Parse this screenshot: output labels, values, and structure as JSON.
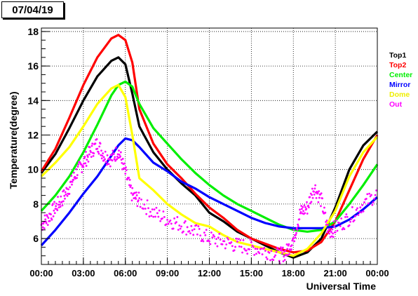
{
  "date_label": "07/04/19",
  "chart_data": {
    "type": "line",
    "title": "",
    "xlabel": "Universal Time",
    "ylabel": "Temperature(degree)",
    "xlim": [
      0,
      24
    ],
    "ylim": [
      4.5,
      18.2
    ],
    "x_ticks": [
      "00:00",
      "03:00",
      "06:00",
      "09:00",
      "12:00",
      "15:00",
      "18:00",
      "21:00",
      "00:00"
    ],
    "y_ticks": [
      6,
      8,
      10,
      12,
      14,
      16,
      18
    ],
    "grid": true,
    "legend_position": "right",
    "series": [
      {
        "name": "Top1",
        "color": "#000000",
        "x": [
          0,
          1,
          2,
          3,
          4,
          5,
          5.5,
          6,
          6.5,
          7,
          8,
          9,
          10,
          11,
          12,
          13,
          14,
          15,
          16,
          17,
          18,
          19,
          20,
          21,
          22,
          23,
          24
        ],
        "y": [
          9.8,
          10.9,
          12.4,
          14.0,
          15.4,
          16.3,
          16.5,
          16.1,
          14.4,
          12.5,
          11.0,
          10.0,
          9.2,
          8.5,
          7.5,
          7.0,
          6.4,
          6.0,
          5.6,
          5.2,
          4.9,
          5.2,
          6.0,
          7.8,
          10.0,
          11.4,
          12.2
        ]
      },
      {
        "name": "Top2",
        "color": "#ff0000",
        "x": [
          0,
          1,
          2,
          3,
          4,
          5,
          5.5,
          6,
          6.5,
          7,
          8,
          9,
          10,
          11,
          12,
          13,
          14,
          15,
          16,
          17,
          18,
          19,
          20,
          21,
          22,
          23,
          24
        ],
        "y": [
          9.9,
          11.2,
          13.0,
          14.9,
          16.5,
          17.6,
          17.8,
          17.5,
          16.2,
          13.5,
          11.5,
          10.3,
          9.5,
          8.6,
          7.8,
          7.2,
          6.5,
          6.0,
          5.7,
          5.4,
          5.2,
          5.3,
          5.8,
          7.0,
          8.8,
          10.6,
          12.0
        ]
      },
      {
        "name": "Center",
        "color": "#00ee00",
        "x": [
          0,
          1,
          2,
          3,
          4,
          5,
          5.5,
          6,
          6.5,
          7,
          8,
          9,
          10,
          11,
          12,
          13,
          14,
          15,
          16,
          17,
          18,
          19,
          20,
          21,
          22,
          23,
          24
        ],
        "y": [
          7.6,
          8.5,
          9.6,
          11.0,
          12.6,
          14.3,
          14.9,
          15.1,
          14.8,
          13.8,
          12.4,
          11.5,
          10.6,
          9.8,
          9.1,
          8.5,
          8.0,
          7.6,
          7.2,
          6.8,
          6.5,
          6.4,
          6.5,
          7.0,
          8.0,
          9.1,
          10.3
        ]
      },
      {
        "name": "Mirror",
        "color": "#0000ff",
        "x": [
          0,
          1,
          2,
          3,
          4,
          5,
          5.5,
          6,
          6.5,
          7,
          8,
          9,
          10,
          11,
          12,
          13,
          14,
          15,
          16,
          17,
          18,
          19,
          20,
          21,
          22,
          23,
          24
        ],
        "y": [
          5.6,
          6.5,
          7.5,
          8.6,
          9.6,
          10.8,
          11.4,
          11.8,
          11.7,
          11.3,
          10.4,
          9.9,
          9.3,
          8.9,
          8.4,
          8.0,
          7.6,
          7.2,
          6.9,
          6.7,
          6.6,
          6.6,
          6.6,
          6.7,
          7.1,
          7.7,
          8.4
        ]
      },
      {
        "name": "Dome",
        "color": "#ffff00",
        "x": [
          0,
          1,
          2,
          3,
          4,
          5,
          5.5,
          6,
          6.5,
          7,
          8,
          9,
          10,
          11,
          12,
          13,
          14,
          15,
          16,
          17,
          18,
          19,
          20,
          21,
          22,
          23,
          24
        ],
        "y": [
          9.6,
          10.4,
          11.3,
          12.5,
          13.8,
          14.7,
          14.9,
          14.2,
          12.0,
          9.5,
          8.8,
          8.0,
          7.4,
          6.9,
          6.7,
          6.2,
          5.8,
          5.6,
          5.4,
          5.2,
          5.0,
          5.4,
          6.3,
          7.6,
          9.6,
          11.0,
          11.9
        ]
      },
      {
        "name": "Out",
        "color": "#ff00ff",
        "marker": "dots",
        "x": [
          0,
          0.5,
          1,
          1.5,
          2,
          2.5,
          3,
          3.5,
          4,
          4.5,
          5,
          5.5,
          6,
          6.5,
          7,
          8,
          9,
          10,
          11,
          12,
          13,
          14,
          15,
          16,
          17,
          17.5,
          18,
          18.5,
          19,
          19.5,
          20,
          20.5,
          21,
          22,
          23,
          24
        ],
        "y": [
          6.8,
          7.2,
          7.8,
          8.3,
          9.0,
          9.8,
          10.4,
          11.0,
          11.5,
          10.8,
          10.6,
          11.1,
          9.8,
          8.5,
          8.2,
          7.5,
          7.1,
          6.8,
          6.4,
          6.0,
          5.8,
          5.6,
          5.5,
          5.3,
          5.0,
          5.2,
          6.0,
          7.5,
          7.8,
          9.0,
          8.2,
          6.4,
          6.6,
          7.2,
          8.0,
          8.6
        ]
      }
    ]
  }
}
